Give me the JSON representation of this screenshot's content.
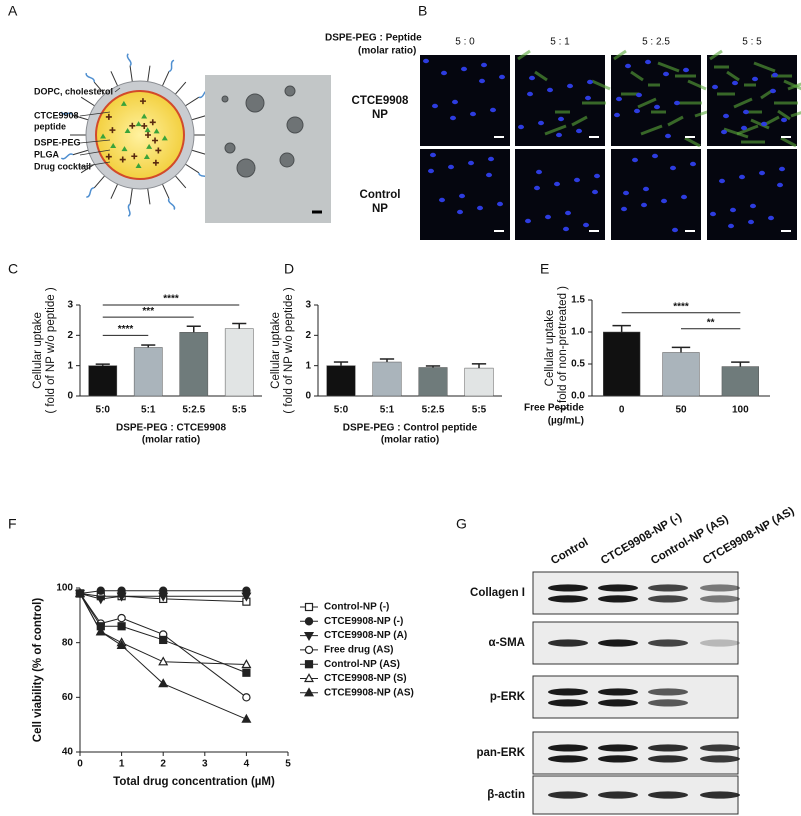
{
  "figure": {
    "panel_labels": [
      "A",
      "B",
      "C",
      "D",
      "E",
      "F",
      "G"
    ],
    "panel_a": {
      "labels": [
        "DOPC, cholesterol",
        "CTCE9908",
        "peptide",
        "DSPE-PEG",
        "PLGA",
        "Drug cocktail"
      ]
    },
    "panel_b": {
      "ratio_label": [
        "DSPE-PEG : Peptide",
        "(molar ratio)"
      ],
      "columns": [
        "5 : 0",
        "5 : 1",
        "5 : 2.5",
        "5 : 5"
      ],
      "rows": [
        [
          "CTCE9908",
          "NP"
        ],
        [
          "Control",
          "NP"
        ]
      ]
    },
    "panel_g": {
      "lanes": [
        "Control",
        "CTCE9908-NP (-)",
        "Control-NP (AS)",
        "CTCE9908-NP (AS)"
      ],
      "rows": [
        "Collagen I",
        "α-SMA",
        "p-ERK",
        "pan-ERK",
        "β-actin"
      ]
    }
  },
  "chart_data": [
    {
      "type": "bar",
      "ylabel": [
        "Cellular uptake",
        "( fold of NP w/o peptide )"
      ],
      "xlabel": [
        "DSPE-PEG : CTCE9908",
        "(molar ratio)"
      ],
      "categories": [
        "5:0",
        "5:1",
        "5:2.5",
        "5:5"
      ],
      "values": [
        1.0,
        1.6,
        2.1,
        2.22
      ],
      "errors": [
        0.05,
        0.08,
        0.2,
        0.17
      ],
      "colors": [
        "#111111",
        "#aab4bb",
        "#6f7b7b",
        "#e1e4e4"
      ],
      "ylim": [
        0,
        3
      ],
      "yticks": [
        0,
        1,
        2,
        3
      ],
      "annotations": [
        {
          "text": "****",
          "from": "5:0",
          "to": "5:1",
          "y": 2.0
        },
        {
          "text": "***",
          "from": "5:0",
          "to": "5:2.5",
          "y": 2.6
        },
        {
          "text": "****",
          "from": "5:0",
          "to": "5:5",
          "y": 3.0
        }
      ]
    },
    {
      "type": "bar",
      "ylabel": [
        "Cellular uptake",
        "( fold of NP w/o peptide )"
      ],
      "xlabel": [
        "DSPE-PEG : Control peptide",
        "(molar ratio)"
      ],
      "categories": [
        "5:0",
        "5:1",
        "5:2.5",
        "5:5"
      ],
      "values": [
        1.0,
        1.12,
        0.94,
        0.92
      ],
      "errors": [
        0.12,
        0.1,
        0.05,
        0.14
      ],
      "colors": [
        "#111111",
        "#aab4bb",
        "#6f7b7b",
        "#e1e4e4"
      ],
      "ylim": [
        0,
        3
      ],
      "yticks": [
        0,
        1,
        2,
        3
      ],
      "annotations": []
    },
    {
      "type": "bar",
      "ylabel": [
        "Cellular uptake",
        "( fold of non-pretreated )"
      ],
      "category_title": [
        "Free Peptide",
        "(µg/mL)"
      ],
      "categories": [
        "0",
        "50",
        "100"
      ],
      "values": [
        1.0,
        0.68,
        0.46
      ],
      "errors": [
        0.1,
        0.08,
        0.07
      ],
      "colors": [
        "#111111",
        "#aab4bb",
        "#6f7b7b"
      ],
      "ylim": [
        0,
        1.5
      ],
      "yticks": [
        {
          "value": 0,
          "label": "0.0"
        },
        0.5,
        {
          "value": 1,
          "label": "1.0"
        },
        1.5
      ],
      "annotations": [
        {
          "text": "****",
          "from": "0",
          "to": "100",
          "y": 1.3
        },
        {
          "text": "**",
          "from": "50",
          "to": "100",
          "y": 1.05
        }
      ]
    },
    {
      "type": "line",
      "ylabel": "Cell viability (% of control)",
      "xlabel": "Total drug concentration (µM)",
      "x": [
        0,
        0.5,
        1,
        2,
        4
      ],
      "xlim": [
        0,
        5
      ],
      "xticks": [
        0,
        1,
        2,
        3,
        4,
        5
      ],
      "ylim": [
        40,
        100
      ],
      "yticks": [
        40,
        60,
        80,
        100
      ],
      "series": [
        {
          "name": "Control-NP (-)",
          "color": "#222222",
          "marker": "square",
          "filled": false,
          "values": [
            98,
            97,
            97,
            96,
            95
          ]
        },
        {
          "name": "CTCE9908-NP (-)",
          "color": "#222222",
          "marker": "circle",
          "filled": true,
          "values": [
            98,
            99,
            99,
            99,
            99
          ]
        },
        {
          "name": "CTCE9908-NP (A)",
          "color": "#222222",
          "marker": "triangle-down",
          "filled": true,
          "values": [
            98,
            96,
            97,
            97,
            97
          ]
        },
        {
          "name": "Free drug (AS)",
          "color": "#222222",
          "marker": "circle",
          "filled": false,
          "values": [
            98,
            87,
            89,
            83,
            60
          ]
        },
        {
          "name": "Control-NP (AS)",
          "color": "#222222",
          "marker": "square",
          "filled": true,
          "values": [
            98,
            86,
            86,
            81,
            69
          ]
        },
        {
          "name": "CTCE9908-NP (S)",
          "color": "#222222",
          "marker": "triangle",
          "filled": false,
          "values": [
            98,
            84,
            80,
            73,
            72
          ]
        },
        {
          "name": "CTCE9908-NP (AS)",
          "color": "#222222",
          "marker": "triangle",
          "filled": true,
          "values": [
            98,
            84,
            79,
            65,
            52
          ]
        }
      ]
    }
  ]
}
